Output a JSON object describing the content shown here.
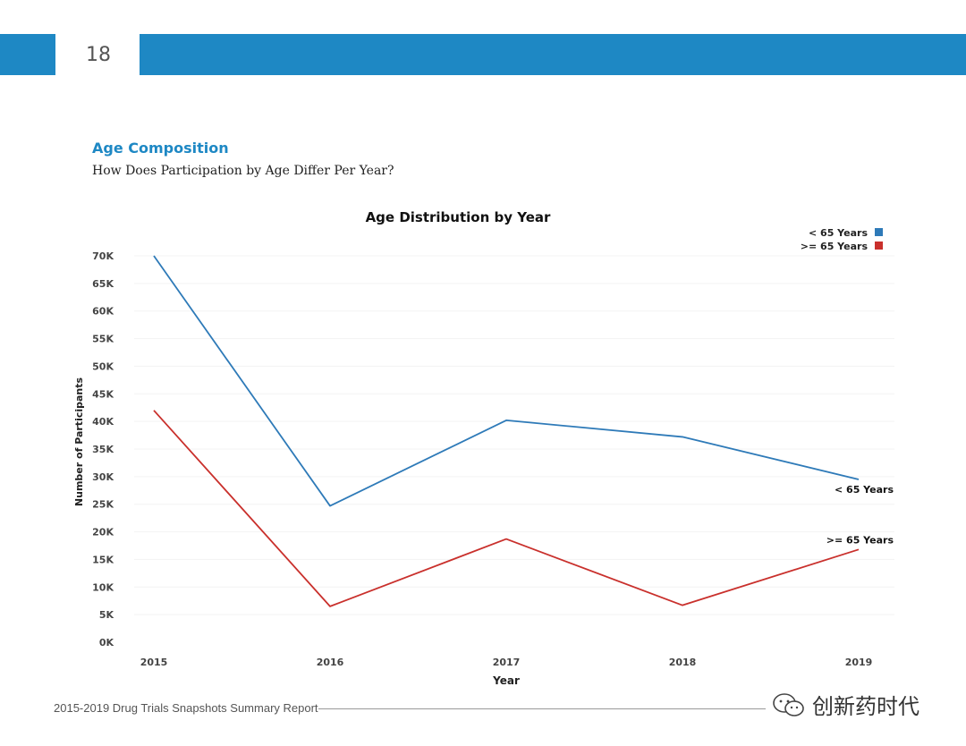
{
  "header": {
    "page_number": "18"
  },
  "section": {
    "title": "Age Composition",
    "subtitle": "How Does Participation by Age Differ Per Year?"
  },
  "footer": {
    "text": "2015-2019 Drug Trials Snapshots Summary Report"
  },
  "watermark": {
    "text": "创新药时代"
  },
  "colors": {
    "accent": "#1e88c4",
    "series_under": "#2e7ab8",
    "series_over": "#c9302c"
  },
  "chart_data": {
    "type": "line",
    "title": "Age Distribution by Year",
    "xlabel": "Year",
    "ylabel": "Number of Participants",
    "x": [
      "2015",
      "2016",
      "2017",
      "2018",
      "2019"
    ],
    "ylim": [
      0,
      70000
    ],
    "yticks": [
      0,
      5000,
      10000,
      15000,
      20000,
      25000,
      30000,
      35000,
      40000,
      45000,
      50000,
      55000,
      60000,
      65000,
      70000
    ],
    "ytick_labels": [
      "0K",
      "5K",
      "10K",
      "15K",
      "20K",
      "25K",
      "30K",
      "35K",
      "40K",
      "45K",
      "50K",
      "55K",
      "60K",
      "65K",
      "70K"
    ],
    "legend_position": "top-right",
    "series": [
      {
        "name": "< 65 Years",
        "color": "#2e7ab8",
        "values": [
          70000,
          24700,
          40200,
          37200,
          29500
        ]
      },
      {
        "name": ">= 65 Years",
        "color": "#c9302c",
        "values": [
          42000,
          6500,
          18700,
          6700,
          16800
        ]
      }
    ]
  }
}
